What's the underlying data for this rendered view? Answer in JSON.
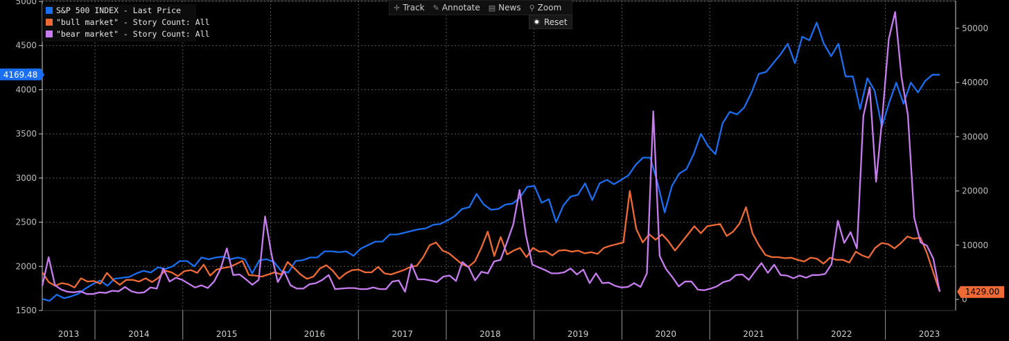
{
  "toolbar": {
    "track_label": "Track",
    "annotate_label": "Annotate",
    "news_label": "News",
    "zoom_label": "Zoom",
    "reset_label": "Reset"
  },
  "chart_data": {
    "type": "line",
    "x_labels": [
      "2013",
      "2014",
      "2015",
      "2016",
      "2017",
      "2018",
      "2019",
      "2020",
      "2021",
      "2022",
      "2023"
    ],
    "grid": true,
    "legend_position": "top-left",
    "left_axis": {
      "ylim": [
        1500,
        5000
      ],
      "ticks": [
        1500,
        2000,
        2500,
        3000,
        3500,
        4000,
        4500,
        5000
      ]
    },
    "right_axis": {
      "ylim": [
        0,
        57000
      ],
      "ticks": [
        0,
        10000,
        20000,
        30000,
        40000,
        50000
      ],
      "tick_labels": [
        "0",
        "10000",
        "20000",
        "30000",
        "40000",
        "50000"
      ]
    },
    "last_value_labels": {
      "sp500": "4169.48",
      "bull": "1429.00"
    },
    "series": [
      {
        "name": "S&P 500 INDEX - Last Price",
        "axis": "left",
        "color": "#1a6ef0",
        "values": [
          1630,
          1610,
          1680,
          1640,
          1660,
          1690,
          1750,
          1800,
          1840,
          1780,
          1860,
          1870,
          1880,
          1920,
          1950,
          1930,
          1990,
          1970,
          2000,
          2060,
          2060,
          2000,
          2100,
          2080,
          2100,
          2110,
          2080,
          2100,
          2080,
          1920,
          2070,
          2080,
          2050,
          1950,
          1930,
          2060,
          2070,
          2100,
          2100,
          2170,
          2170,
          2160,
          2170,
          2120,
          2200,
          2240,
          2280,
          2280,
          2360,
          2360,
          2380,
          2400,
          2420,
          2430,
          2470,
          2480,
          2520,
          2570,
          2650,
          2670,
          2820,
          2700,
          2640,
          2650,
          2700,
          2710,
          2780,
          2900,
          2910,
          2720,
          2760,
          2500,
          2690,
          2790,
          2810,
          2940,
          2750,
          2940,
          2980,
          2930,
          2980,
          3030,
          3150,
          3230,
          3230,
          2950,
          2610,
          2910,
          3050,
          3100,
          3270,
          3500,
          3360,
          3270,
          3620,
          3750,
          3720,
          3800,
          3970,
          4180,
          4200,
          4300,
          4400,
          4520,
          4300,
          4600,
          4560,
          4760,
          4520,
          4380,
          4520,
          4150,
          4150,
          3780,
          4130,
          3990,
          3580,
          3850,
          4080,
          3840,
          4080,
          3970,
          4100,
          4169.48,
          4169.48
        ]
      },
      {
        "name": "\"bull market\" - Story Count: All",
        "axis": "right",
        "color": "#f06a35",
        "values": [
          5000,
          3200,
          2500,
          3000,
          2800,
          2200,
          3900,
          3300,
          3400,
          2900,
          4900,
          3600,
          2700,
          3600,
          3600,
          3300,
          3900,
          3200,
          4000,
          5300,
          5000,
          4300,
          5200,
          5400,
          4900,
          6400,
          4400,
          5500,
          5800,
          6000,
          6500,
          7100,
          4500,
          4400,
          4200,
          4600,
          5000,
          4600,
          6900,
          5800,
          4600,
          3800,
          4200,
          5700,
          6300,
          5300,
          3800,
          4800,
          5400,
          5500,
          5000,
          5000,
          6000,
          4800,
          4600,
          5000,
          5400,
          6000,
          6200,
          7800,
          10000,
          10500,
          9000,
          8500,
          7500,
          6500,
          6000,
          7000,
          9500,
          12500,
          8000,
          11500,
          8300,
          9000,
          9500,
          7800,
          9500,
          8800,
          8900,
          8100,
          9000,
          9100,
          8800,
          9000,
          8500,
          8700,
          8400,
          9500,
          9900,
          10200,
          10500,
          20000,
          13000,
          10500,
          12000,
          11000,
          12000,
          10700,
          9000,
          10500,
          12000,
          13500,
          12200,
          13500,
          13700,
          13900,
          11700,
          12500,
          14000,
          17000,
          12200,
          10000,
          8200,
          7800,
          7800,
          7600,
          7700,
          7300,
          7000,
          7700,
          7500,
          6600,
          7700,
          7300,
          7300,
          6800,
          8800,
          8100,
          7700,
          9500,
          10400,
          10200,
          9400,
          10400,
          11600,
          11200,
          11400,
          8600,
          5000,
          1429
        ]
      },
      {
        "name": "\"bear market\" - Story Count: All",
        "axis": "right",
        "color": "#c77cf0",
        "values": [
          2500,
          7800,
          2600,
          1800,
          1400,
          1300,
          1500,
          1000,
          1000,
          1300,
          1200,
          1600,
          1500,
          2300,
          1500,
          1200,
          1300,
          2200,
          2000,
          5700,
          3300,
          4000,
          3600,
          2900,
          2200,
          2600,
          2100,
          3300,
          5600,
          9400,
          4500,
          4600,
          3700,
          2700,
          3600,
          15300,
          8400,
          3200,
          5200,
          2600,
          2000,
          2000,
          2800,
          3000,
          3600,
          4500,
          1900,
          2000,
          2100,
          2100,
          1900,
          1900,
          2200,
          1900,
          1900,
          3300,
          3500,
          1400,
          6500,
          3700,
          3700,
          3500,
          3200,
          4200,
          4400,
          3400,
          6900,
          5900,
          3500,
          5100,
          4800,
          7000,
          7300,
          10500,
          13800,
          20200,
          11800,
          6400,
          5900,
          5400,
          4800,
          4800,
          5000,
          5700,
          4600,
          5500,
          3000,
          4800,
          3000,
          3100,
          2500,
          2200,
          2300,
          3000,
          2300,
          4800,
          34700,
          8000,
          5600,
          4100,
          2400,
          3300,
          3300,
          1800,
          1700,
          2000,
          2400,
          3200,
          3500,
          4500,
          4600,
          3600,
          5200,
          6700,
          4900,
          6400,
          4500,
          4400,
          3900,
          4400,
          4000,
          4500,
          4500,
          4700,
          6500,
          14500,
          10400,
          12400,
          9400,
          33800,
          39100,
          21700,
          33800,
          48000,
          53000,
          41000,
          34000,
          15000,
          10500,
          9900,
          7500,
          1429
        ]
      }
    ]
  }
}
